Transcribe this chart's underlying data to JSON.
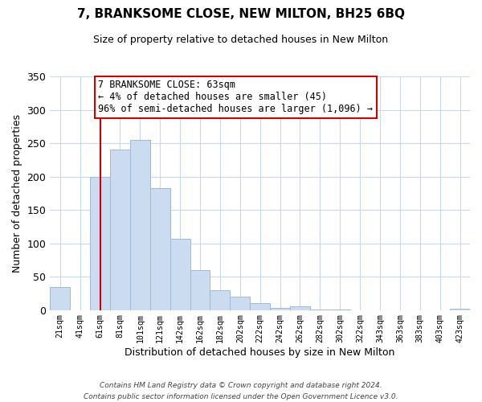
{
  "title": "7, BRANKSOME CLOSE, NEW MILTON, BH25 6BQ",
  "subtitle": "Size of property relative to detached houses in New Milton",
  "xlabel": "Distribution of detached houses by size in New Milton",
  "ylabel": "Number of detached properties",
  "bar_labels": [
    "21sqm",
    "41sqm",
    "61sqm",
    "81sqm",
    "101sqm",
    "121sqm",
    "142sqm",
    "162sqm",
    "182sqm",
    "202sqm",
    "222sqm",
    "242sqm",
    "262sqm",
    "282sqm",
    "302sqm",
    "322sqm",
    "343sqm",
    "363sqm",
    "383sqm",
    "403sqm",
    "423sqm"
  ],
  "bar_heights": [
    35,
    0,
    200,
    240,
    255,
    183,
    107,
    60,
    30,
    20,
    10,
    3,
    6,
    1,
    1,
    0,
    0,
    0,
    0,
    0,
    2
  ],
  "bar_color": "#ccdcf0",
  "bar_edge_color": "#a0b8d8",
  "vline_x_index": 2,
  "vline_color": "#cc0000",
  "ylim": [
    0,
    350
  ],
  "yticks": [
    0,
    50,
    100,
    150,
    200,
    250,
    300,
    350
  ],
  "ann_line1": "7 BRANKSOME CLOSE: 63sqm",
  "ann_line2": "← 4% of detached houses are smaller (45)",
  "ann_line3": "96% of semi-detached houses are larger (1,096) →",
  "annotation_box_color": "#ffffff",
  "annotation_box_edge": "#cc0000",
  "footer_line1": "Contains HM Land Registry data © Crown copyright and database right 2024.",
  "footer_line2": "Contains public sector information licensed under the Open Government Licence v3.0.",
  "background_color": "#ffffff",
  "grid_color": "#c8d8f0"
}
